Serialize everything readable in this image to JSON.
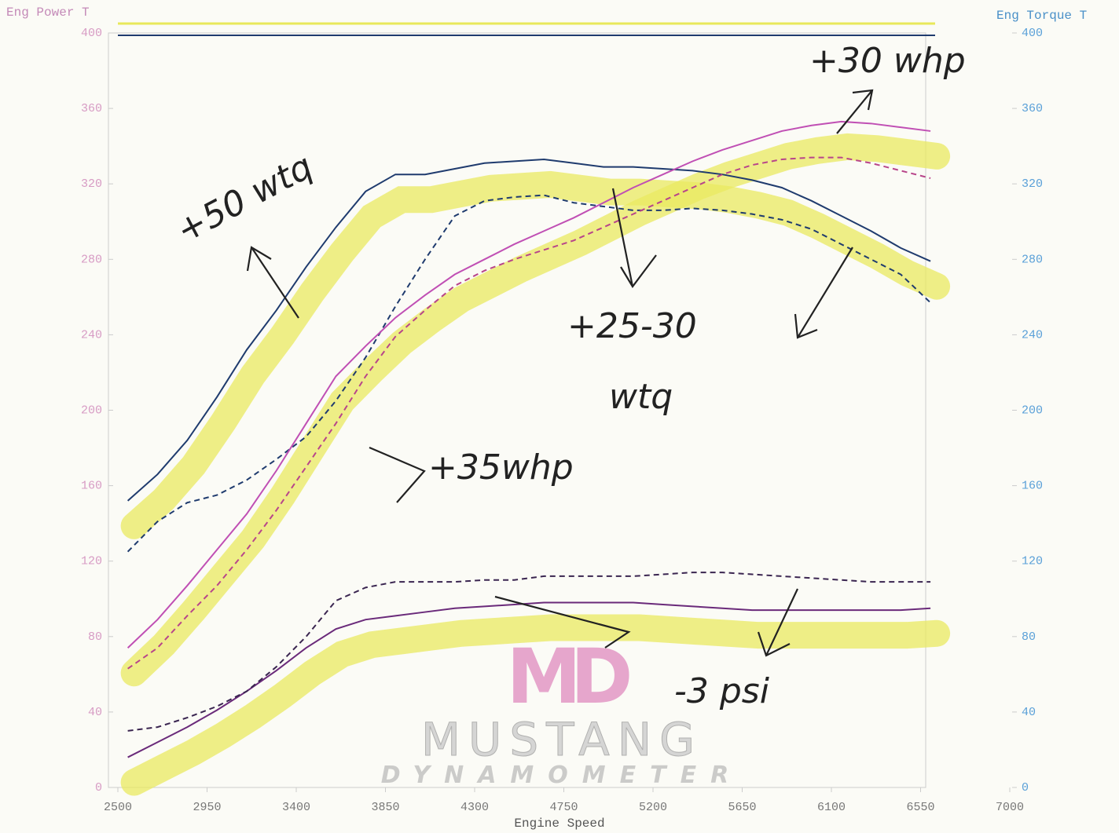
{
  "chart_data": {
    "type": "line",
    "y_title": "Eng Power T",
    "y2_title": "Eng Torque T",
    "x_title": "Engine Speed",
    "x": [
      2550,
      2700,
      2850,
      3000,
      3150,
      3300,
      3450,
      3600,
      3750,
      3900,
      4050,
      4200,
      4350,
      4500,
      4650,
      4800,
      4950,
      5100,
      5250,
      5400,
      5550,
      5700,
      5850,
      6000,
      6150,
      6300,
      6450,
      6600
    ],
    "series": [
      {
        "color": "#1f3b6e",
        "dashed": false,
        "highlight": true,
        "values": [
          152,
          166,
          184,
          207,
          232,
          253,
          276,
          297,
          316,
          325,
          325,
          328,
          331,
          332,
          333,
          331,
          329,
          329,
          328,
          327,
          325,
          322,
          318,
          311,
          303,
          295,
          286,
          279
        ]
      },
      {
        "color": "#1f3b6e",
        "dashed": true,
        "highlight": false,
        "values": [
          125,
          141,
          151,
          155,
          163,
          174,
          186,
          205,
          228,
          255,
          280,
          303,
          311,
          313,
          314,
          310,
          308,
          306,
          306,
          307,
          306,
          304,
          301,
          296,
          288,
          280,
          272,
          257
        ]
      },
      {
        "color": "#c04fb4",
        "dashed": false,
        "highlight": true,
        "values": [
          74,
          89,
          107,
          126,
          145,
          168,
          193,
          218,
          234,
          249,
          261,
          272,
          280,
          288,
          295,
          302,
          310,
          318,
          325,
          332,
          338,
          343,
          348,
          351,
          353,
          352,
          350,
          348
        ]
      },
      {
        "color": "#b8458a",
        "dashed": true,
        "highlight": false,
        "values": [
          63,
          74,
          91,
          107,
          126,
          147,
          170,
          193,
          218,
          239,
          253,
          266,
          274,
          280,
          285,
          290,
          297,
          304,
          311,
          318,
          325,
          330,
          333,
          334,
          334,
          331,
          327,
          323
        ]
      },
      {
        "color": "#6a2a7a",
        "dashed": false,
        "highlight": true,
        "values": [
          16,
          24,
          32,
          41,
          51,
          62,
          74,
          84,
          89,
          91,
          93,
          95,
          96,
          97,
          98,
          98,
          98,
          98,
          97,
          96,
          95,
          94,
          94,
          94,
          94,
          94,
          94,
          95
        ]
      },
      {
        "color": "#3a2550",
        "dashed": true,
        "highlight": false,
        "values": [
          30,
          32,
          37,
          43,
          51,
          64,
          80,
          99,
          106,
          109,
          109,
          109,
          110,
          110,
          112,
          112,
          112,
          112,
          113,
          114,
          114,
          113,
          112,
          111,
          110,
          109,
          109,
          109
        ]
      }
    ],
    "xlim": [
      2500,
      7000
    ],
    "xticks": [
      2500,
      2950,
      3400,
      3850,
      4300,
      4750,
      5200,
      5650,
      6100,
      6550,
      7000
    ],
    "ylim": [
      0,
      400
    ],
    "yticks": [
      0,
      40,
      80,
      120,
      160,
      200,
      240,
      280,
      320,
      360,
      400
    ],
    "y2lim": [
      0,
      400
    ],
    "y2ticks": [
      0,
      40,
      80,
      120,
      160,
      200,
      240,
      280,
      320,
      360,
      400
    ],
    "annotations": [
      "+50 wtq",
      "+30 whp",
      "+25-30",
      "wtq",
      "+35whp",
      "-3 psi"
    ],
    "logo": {
      "mark": "MD",
      "name": "MUSTANG",
      "sub": "DYNAMOMETER"
    }
  }
}
